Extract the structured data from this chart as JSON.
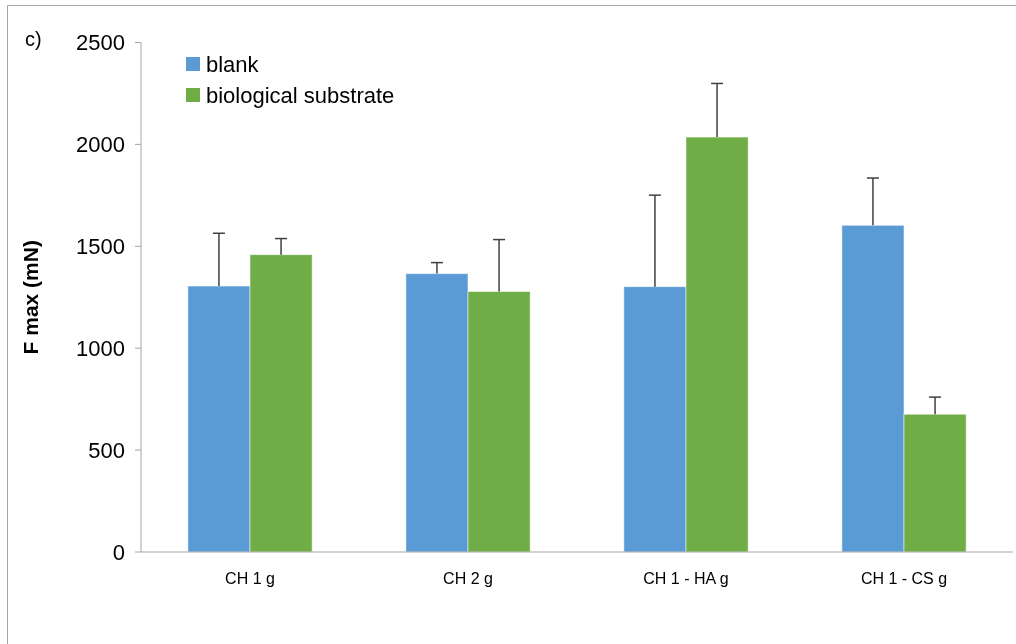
{
  "chart_data": {
    "type": "bar",
    "annotations": [
      "c)"
    ],
    "ylabel": "F max (mN)",
    "categories": [
      "CH 1 g",
      "CH 2 g",
      "CH 1 - HA g",
      "CH 1 - CS g"
    ],
    "series": [
      {
        "name": "blank",
        "color": "#5b9bd5",
        "values": [
          1305,
          1366,
          1302,
          1603
        ],
        "errors": [
          [
            1305,
            1564
          ],
          [
            1366,
            1420
          ],
          [
            1302,
            1751
          ],
          [
            1603,
            1835
          ]
        ]
      },
      {
        "name": "biological substrate",
        "color": "#70ad47",
        "values": [
          1459,
          1278,
          2036,
          676
        ],
        "errors": [
          [
            1459,
            1538
          ],
          [
            1278,
            1533
          ],
          [
            2036,
            2299
          ],
          [
            676,
            760
          ]
        ]
      }
    ],
    "ylim": [
      0,
      2500
    ],
    "yticks": [
      0,
      500,
      1000,
      1500,
      2000,
      2500
    ],
    "grid": false,
    "legend": "top left"
  }
}
